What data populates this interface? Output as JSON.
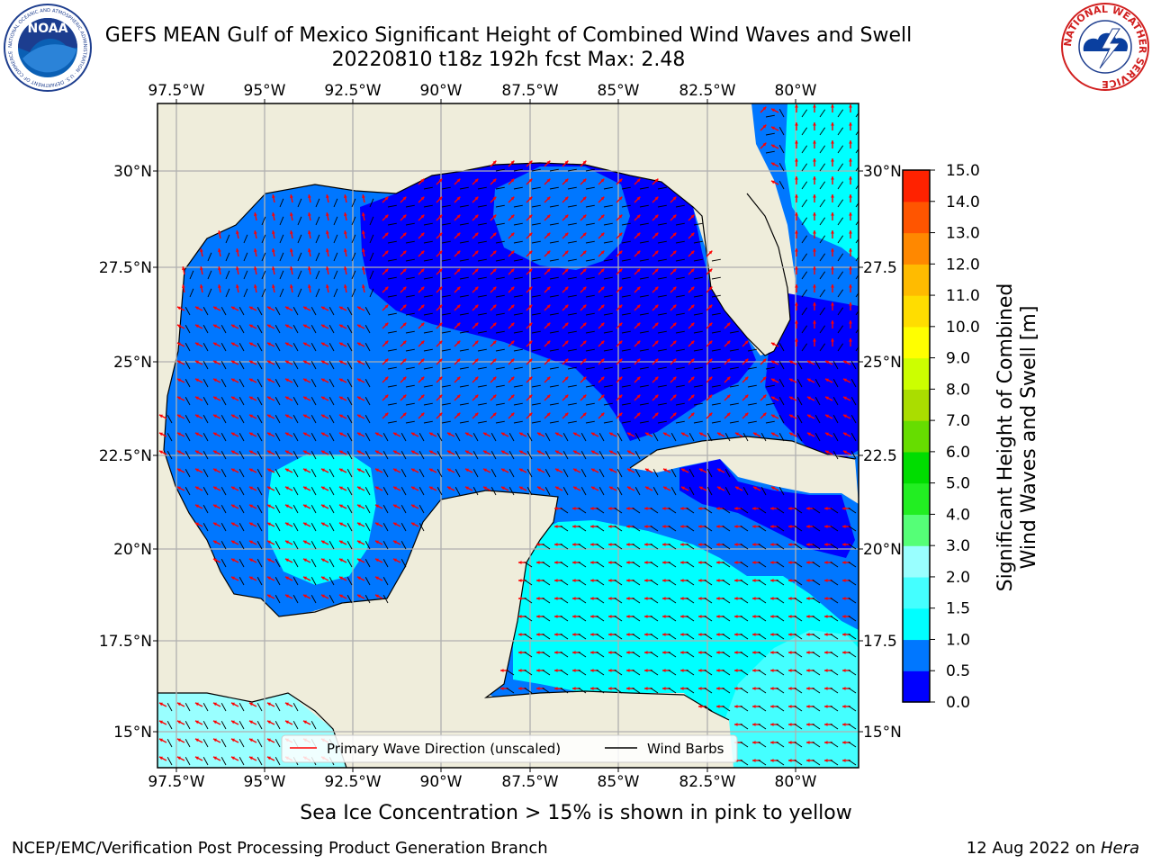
{
  "title": {
    "line1": "GEFS MEAN Gulf of Mexico Significant Height of Combined Wind Waves and Swell",
    "line2": "20220810 t18z 192h fcst   Max: 2.48"
  },
  "map": {
    "lon_ticks": [
      "97.5°W",
      "95°W",
      "92.5°W",
      "90°W",
      "87.5°W",
      "85°W",
      "82.5°W",
      "80°W"
    ],
    "lat_ticks_left": [
      "30°N",
      "27.5°N",
      "25°N",
      "22.5°N",
      "20°N",
      "17.5°N",
      "15°N"
    ],
    "lat_ticks_right": [
      "30°N",
      "27.5",
      "25°N",
      "22.5",
      "20°N",
      "17.5",
      "15°N"
    ],
    "colors": {
      "land": "#efeddb",
      "ocean_0": "#0000ff",
      "ocean_05": "#0077ff",
      "ocean_1": "#00ffff",
      "ocean_15": "#44ffff",
      "ocean_2": "#99ffff",
      "grid": "#b0b0b0",
      "wave_arrow": "#ff0000",
      "wind_barb": "#000000"
    }
  },
  "legend": {
    "wave_label": "Primary Wave Direction (unscaled)",
    "barb_label": "Wind Barbs"
  },
  "colorbar": {
    "label_line1": "Significant Height of Combined",
    "label_line2": "Wind Waves and Swell [m]",
    "ticks": [
      "0.0",
      "0.5",
      "1.0",
      "1.5",
      "2.0",
      "3.0",
      "4.0",
      "5.0",
      "6.0",
      "7.0",
      "8.0",
      "9.0",
      "10.0",
      "11.0",
      "12.0",
      "13.0",
      "14.0",
      "15.0"
    ],
    "colors": [
      "#0000ff",
      "#0077ff",
      "#00ffff",
      "#44ffff",
      "#99ffff",
      "#55ff77",
      "#22ee22",
      "#00dd00",
      "#66dd00",
      "#aadd00",
      "#ccff00",
      "#ffff00",
      "#ffdd00",
      "#ffbb00",
      "#ff8800",
      "#ff5500",
      "#ff2200"
    ]
  },
  "logos": {
    "noaa_text": "NOAA",
    "noaa_ring_text": "NATIONAL OCEANIC AND ATMOSPHERIC ADMINISTRATION · U.S. DEPARTMENT OF COMMERCE",
    "nws_ring_text": "NATIONAL WEATHER SERVICE"
  },
  "notes": {
    "sea_ice": "Sea Ice Concentration > 15% is shown in pink to yellow",
    "producer": "NCEP/EMC/Verification Post Processing Product Generation Branch",
    "date_prefix": "12 Aug 2022 on ",
    "host": "Hera"
  }
}
